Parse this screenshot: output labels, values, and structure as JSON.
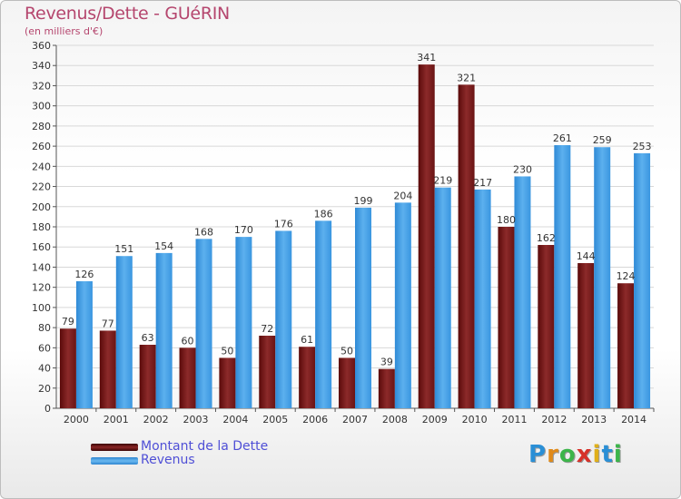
{
  "header": {
    "title": "Revenus/Dette - GUéRIN",
    "subtitle": "(en milliers d'€)"
  },
  "chart_data": {
    "type": "bar",
    "categories": [
      "2000",
      "2001",
      "2002",
      "2003",
      "2004",
      "2005",
      "2006",
      "2007",
      "2008",
      "2009",
      "2010",
      "2011",
      "2012",
      "2013",
      "2014"
    ],
    "series": [
      {
        "name": "Montant de la Dette",
        "color": "#7a1f1f",
        "values": [
          79,
          77,
          63,
          60,
          50,
          72,
          61,
          50,
          39,
          341,
          321,
          180,
          162,
          144,
          124
        ]
      },
      {
        "name": "Revenus",
        "color": "#3d9be0",
        "values": [
          126,
          151,
          154,
          168,
          170,
          176,
          186,
          199,
          204,
          219,
          217,
          230,
          261,
          259,
          253
        ]
      }
    ],
    "yticks": [
      0,
      20,
      40,
      60,
      80,
      100,
      120,
      140,
      160,
      180,
      200,
      220,
      240,
      260,
      280,
      300,
      320,
      340,
      360
    ],
    "ylim": [
      0,
      360
    ],
    "grid": true,
    "legend_position": "bottom-left"
  },
  "legend": {
    "items": [
      {
        "label": "Montant de la Dette",
        "color": "#6b1010"
      },
      {
        "label": "Revenus",
        "color": "#3d9be0"
      }
    ]
  },
  "logo": {
    "letters": [
      "P",
      "r",
      "o",
      "x",
      "i",
      "t",
      "i"
    ],
    "colors": [
      "#2a8fd6",
      "#e08a1a",
      "#3cb54a",
      "#d6322a",
      "#e0b01a",
      "#2a8fd6",
      "#3cb54a"
    ]
  }
}
